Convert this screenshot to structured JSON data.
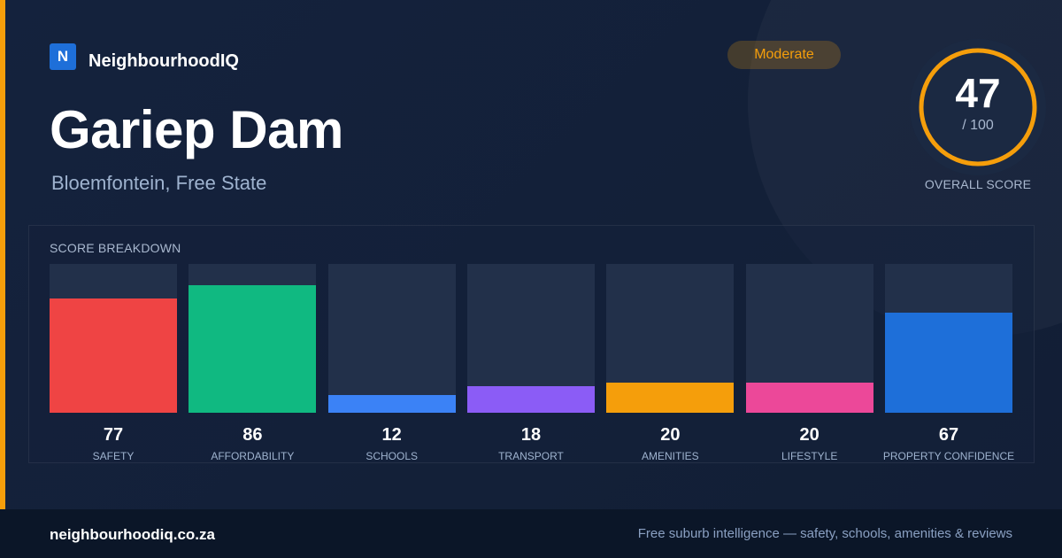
{
  "brand": {
    "mark": "N",
    "name": "NeighbourhoodIQ"
  },
  "location": {
    "title": "Gariep Dam",
    "subtitle": "Bloemfontein, Free State"
  },
  "badge": {
    "label": "Moderate",
    "color": "#f59e0b"
  },
  "overall": {
    "score": "47",
    "denominator": "/ 100",
    "label": "OVERALL SCORE",
    "value": 47,
    "max": 100,
    "color": "#f59e0b"
  },
  "breakdown": {
    "title": "SCORE BREAKDOWN",
    "items": [
      {
        "label": "SAFETY",
        "value": 77,
        "display": "77",
        "color": "#ef4444"
      },
      {
        "label": "AFFORDABILITY",
        "value": 86,
        "display": "86",
        "color": "#10b981"
      },
      {
        "label": "SCHOOLS",
        "value": 12,
        "display": "12",
        "color": "#3b82f6"
      },
      {
        "label": "TRANSPORT",
        "value": 18,
        "display": "18",
        "color": "#8b5cf6"
      },
      {
        "label": "AMENITIES",
        "value": 20,
        "display": "20",
        "color": "#f59e0b"
      },
      {
        "label": "LIFESTYLE",
        "value": 20,
        "display": "20",
        "color": "#ec4899"
      },
      {
        "label": "PROPERTY CONFIDENCE",
        "value": 67,
        "display": "67",
        "color": "#1e6fd9"
      }
    ]
  },
  "footer": {
    "url": "neighbourhoodiq.co.za",
    "tagline": "Free suburb intelligence — safety, schools, amenities & reviews"
  },
  "colors": {
    "accent": "#f59e0b",
    "brand": "#1e6fd9"
  }
}
